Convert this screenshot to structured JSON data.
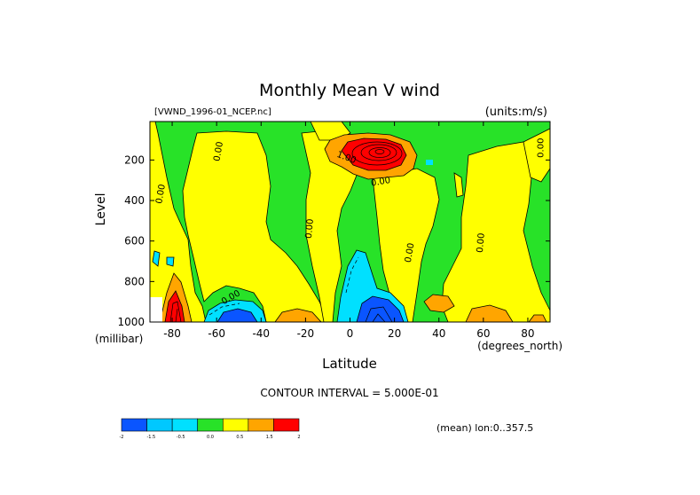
{
  "chart_data": {
    "type": "contour",
    "title": "Monthly Mean V wind",
    "file_label": "[VWND_1996-01_NCEP.nc]",
    "units_label": "(units:m/s)",
    "ylabel": "Level",
    "ylabel_units": "(millibar)",
    "xlabel": "Latitude",
    "xlabel_units": "(degrees_north)",
    "x_ticks": [
      -80,
      -60,
      -40,
      -20,
      0,
      20,
      40,
      60,
      80
    ],
    "x_tick_labels": [
      "-80",
      "-60",
      "-40",
      "-20",
      "0",
      "20",
      "40",
      "60",
      "80"
    ],
    "y_ticks": [
      200,
      400,
      600,
      800,
      1000
    ],
    "y_tick_labels": [
      "200",
      "400",
      "600",
      "800",
      "1000"
    ],
    "xlim": [
      -90,
      90
    ],
    "ylim": [
      1000,
      10
    ],
    "contour_interval_text": "CONTOUR INTERVAL = 5.000E-01",
    "mean_text": "(mean) lon:0..357.5",
    "contour_labels": [
      {
        "text": "0.00",
        "lat": -84,
        "lev": 370,
        "rot": -80
      },
      {
        "text": "0.00",
        "lat": -58,
        "lev": 160,
        "rot": -80
      },
      {
        "text": "0.00",
        "lat": -17,
        "lev": 540,
        "rot": -85
      },
      {
        "text": "1.00",
        "lat": -2,
        "lev": 200,
        "rot": 20
      },
      {
        "text": "0.00",
        "lat": 14,
        "lev": 320,
        "rot": -10
      },
      {
        "text": "0.00",
        "lat": 28,
        "lev": 660,
        "rot": -80
      },
      {
        "text": "0.00",
        "lat": 60,
        "lev": 610,
        "rot": -85
      },
      {
        "text": "0.00",
        "lat": 87,
        "lev": 140,
        "rot": -90
      },
      {
        "text": "0.00",
        "lat": -53,
        "lev": 890,
        "rot": -30
      }
    ],
    "colorbar": {
      "colors": [
        "#0a55ff",
        "#00c8ff",
        "#00e0ff",
        "#28e228",
        "#ffff00",
        "#ffa500",
        "#ff0000"
      ],
      "labels": [
        "-2",
        "-1.5",
        "-0.5",
        "0.0",
        "0.5",
        "1.5",
        "2"
      ]
    },
    "fill_colors": {
      "neg2": "#0a55ff",
      "neg1": "#00e0ff",
      "zero": "#28e228",
      "pos05": "#ffff00",
      "pos1": "#ffa500",
      "pos2": "#ff0000"
    }
  }
}
